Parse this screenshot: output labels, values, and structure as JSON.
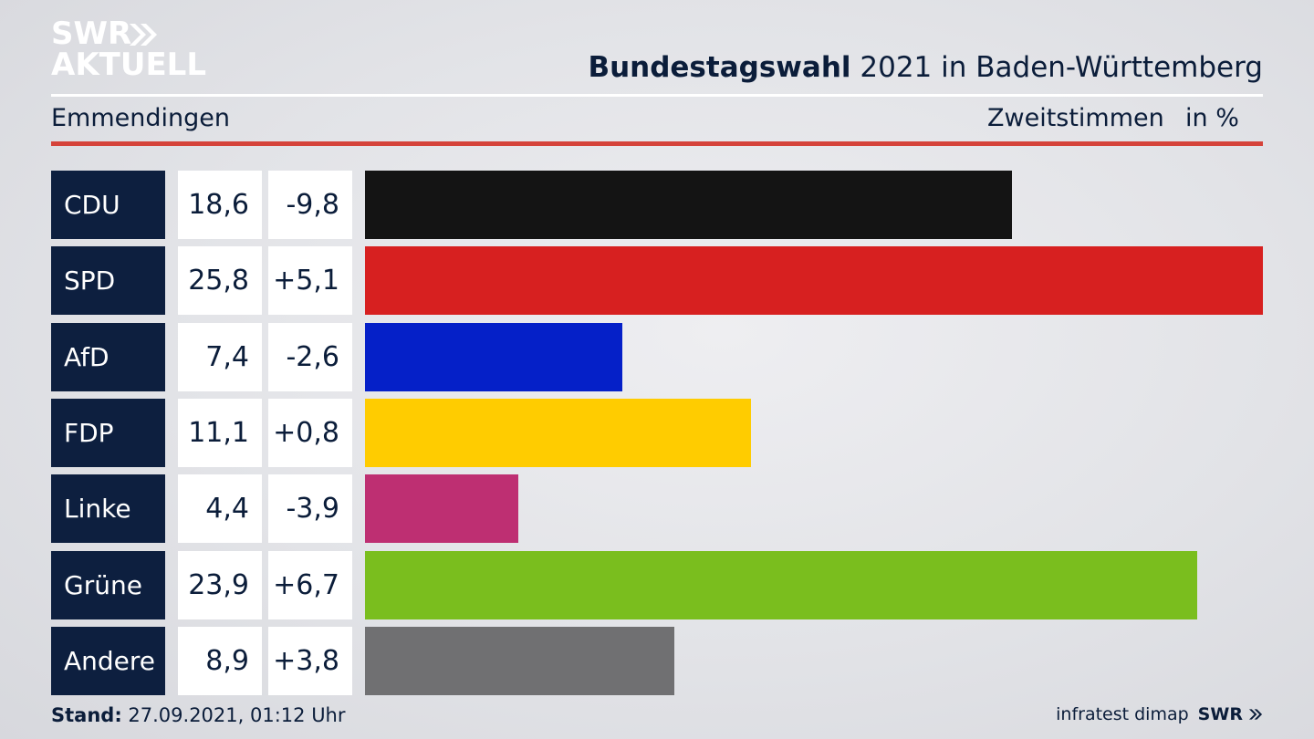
{
  "logo": {
    "line1": "SWR",
    "line2": "AKTUELL"
  },
  "header": {
    "title_bold": "Bundestagswahl",
    "title_rest": "2021 in Baden-Württemberg",
    "district": "Emmendingen",
    "measure": "Zweitstimmen",
    "unit": "in %"
  },
  "chart_data": {
    "type": "bar",
    "title": "Bundestagswahl 2021 in Baden-Württemberg",
    "subtitle": "Emmendingen",
    "xlabel": "",
    "ylabel": "",
    "categories": [
      "CDU",
      "SPD",
      "AfD",
      "FDP",
      "Linke",
      "Grüne",
      "Andere"
    ],
    "series": [
      {
        "values": [
          18.6,
          25.8,
          7.4,
          11.1,
          4.4,
          23.9,
          8.9
        ]
      }
    ],
    "value_labels": [
      "18,6",
      "25,8",
      "7,4",
      "11,1",
      "4,4",
      "23,9",
      "8,9"
    ],
    "change_labels": [
      "-9,8",
      "+5,1",
      "-2,6",
      "+0,8",
      "-3,9",
      "+6,7",
      "+3,8"
    ],
    "colors": [
      "#141414",
      "#d72020",
      "#0520c8",
      "#ffcc00",
      "#be2f72",
      "#7abe1e",
      "#707072"
    ],
    "xlim": [
      0,
      25.8
    ],
    "grid": false,
    "legend": "none"
  },
  "footer": {
    "stand_label": "Stand:",
    "stand_value": "27.09.2021, 01:12 Uhr",
    "source": "infratest dimap",
    "brand": "SWR"
  }
}
